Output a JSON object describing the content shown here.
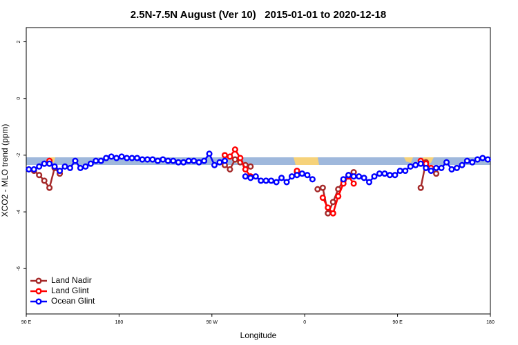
{
  "chart_data": {
    "type": "line",
    "title": "2.5N-7.5N August (Ver 10)   2015-01-01 to 2020-12-18",
    "x_label": "Longitude",
    "y_label": "XCO2 - MLO trend (ppm)",
    "xlim": [
      90,
      540
    ],
    "ylim": [
      -7.6,
      2.5
    ],
    "xticks": [
      {
        "value": 90,
        "label": "90 E"
      },
      180,
      {
        "value": 270,
        "label": "90 W"
      },
      {
        "value": 360,
        "label": "0"
      },
      {
        "value": 450,
        "label": "90 E"
      },
      {
        "value": 540,
        "label": "180"
      }
    ],
    "yticks": [
      2,
      0,
      -2,
      -4,
      -6
    ],
    "legend": "bottom-left",
    "x": [
      92.5,
      97.5,
      102.5,
      107.5,
      112.5,
      117.5,
      122.5,
      127.5,
      132.5,
      137.5,
      142.5,
      147.5,
      152.5,
      157.5,
      162.5,
      167.5,
      172.5,
      177.5,
      182.5,
      187.5,
      192.5,
      197.5,
      202.5,
      207.5,
      212.5,
      217.5,
      222.5,
      227.5,
      232.5,
      237.5,
      242.5,
      247.5,
      252.5,
      257.5,
      262.5,
      267.5,
      272.5,
      277.5,
      282.5,
      287.5,
      292.5,
      297.5,
      302.5,
      307.5,
      312.5,
      317.5,
      322.5,
      327.5,
      332.5,
      337.5,
      342.5,
      347.5,
      352.5,
      357.5,
      362.5,
      367.5,
      372.5,
      377.5,
      382.5,
      387.5,
      392.5,
      397.5,
      402.5,
      407.5,
      412.5,
      417.5,
      422.5,
      427.5,
      432.5,
      437.5,
      442.5,
      447.5,
      452.5,
      457.5,
      462.5,
      467.5,
      472.5,
      477.5,
      482.5,
      487.5,
      492.5,
      497.5,
      502.5,
      507.5,
      512.5,
      517.5,
      522.5,
      527.5,
      532.5,
      537.5
    ],
    "series": [
      {
        "name": "Land Nadir",
        "color": "#a52a2a",
        "values": [
          null,
          -2.55,
          -2.7,
          -2.9,
          -3.15,
          -2.45,
          -2.65,
          null,
          null,
          null,
          null,
          null,
          null,
          null,
          null,
          null,
          null,
          null,
          null,
          null,
          null,
          null,
          null,
          null,
          null,
          null,
          null,
          null,
          null,
          null,
          null,
          null,
          null,
          null,
          null,
          null,
          null,
          null,
          -2.35,
          -2.5,
          -2.15,
          -2.25,
          -2.35,
          -2.4,
          null,
          null,
          null,
          null,
          null,
          null,
          null,
          null,
          -2.6,
          null,
          null,
          null,
          -3.2,
          -3.15,
          -4.05,
          -3.65,
          -3.2,
          -2.9,
          -2.7,
          -2.6,
          null,
          null,
          null,
          null,
          null,
          null,
          null,
          null,
          null,
          null,
          null,
          null,
          -3.15,
          -2.25,
          -2.5,
          -2.65,
          null,
          null,
          null,
          null,
          null,
          null,
          null,
          null,
          null,
          null
        ]
      },
      {
        "name": "Land Glint",
        "color": "#ff0000",
        "values": [
          null,
          null,
          null,
          null,
          -2.2,
          null,
          null,
          null,
          null,
          null,
          null,
          null,
          null,
          null,
          null,
          null,
          null,
          null,
          null,
          null,
          null,
          null,
          null,
          null,
          null,
          null,
          null,
          null,
          null,
          null,
          null,
          null,
          null,
          null,
          null,
          null,
          null,
          null,
          -2.0,
          -2.05,
          -1.8,
          -2.1,
          -2.5,
          -2.75,
          null,
          null,
          null,
          null,
          null,
          null,
          null,
          null,
          -2.55,
          null,
          null,
          null,
          null,
          -3.5,
          -3.85,
          -4.05,
          -3.45,
          -3.0,
          -2.75,
          -3.0,
          null,
          null,
          null,
          null,
          null,
          null,
          null,
          null,
          null,
          null,
          null,
          null,
          -2.2,
          -2.3,
          -2.45,
          null,
          null,
          null,
          null,
          null,
          null,
          null,
          null,
          null,
          null,
          null
        ]
      },
      {
        "name": "Ocean Glint",
        "color": "#0000ff",
        "values": [
          -2.5,
          -2.5,
          -2.4,
          -2.3,
          -2.3,
          -2.4,
          -2.55,
          -2.4,
          -2.45,
          -2.2,
          -2.45,
          -2.4,
          -2.3,
          -2.2,
          -2.2,
          -2.1,
          -2.05,
          -2.1,
          -2.05,
          -2.1,
          -2.1,
          -2.1,
          -2.15,
          -2.15,
          -2.15,
          -2.2,
          -2.15,
          -2.2,
          -2.2,
          -2.25,
          -2.25,
          -2.2,
          -2.2,
          -2.25,
          -2.2,
          -1.95,
          -2.35,
          -2.25,
          -2.2,
          null,
          null,
          null,
          -2.75,
          -2.8,
          -2.75,
          -2.9,
          -2.9,
          -2.9,
          -2.95,
          -2.8,
          -2.95,
          -2.75,
          -2.7,
          -2.65,
          -2.7,
          -2.85,
          null,
          null,
          null,
          null,
          null,
          -2.85,
          -2.7,
          -2.75,
          -2.75,
          -2.8,
          -2.95,
          -2.75,
          -2.65,
          -2.65,
          -2.7,
          -2.7,
          -2.55,
          -2.55,
          -2.4,
          -2.35,
          -2.3,
          -2.45,
          -2.55,
          -2.45,
          -2.45,
          -2.25,
          -2.5,
          -2.45,
          -2.35,
          -2.2,
          -2.25,
          -2.15,
          -2.1,
          -2.15
        ]
      }
    ]
  }
}
